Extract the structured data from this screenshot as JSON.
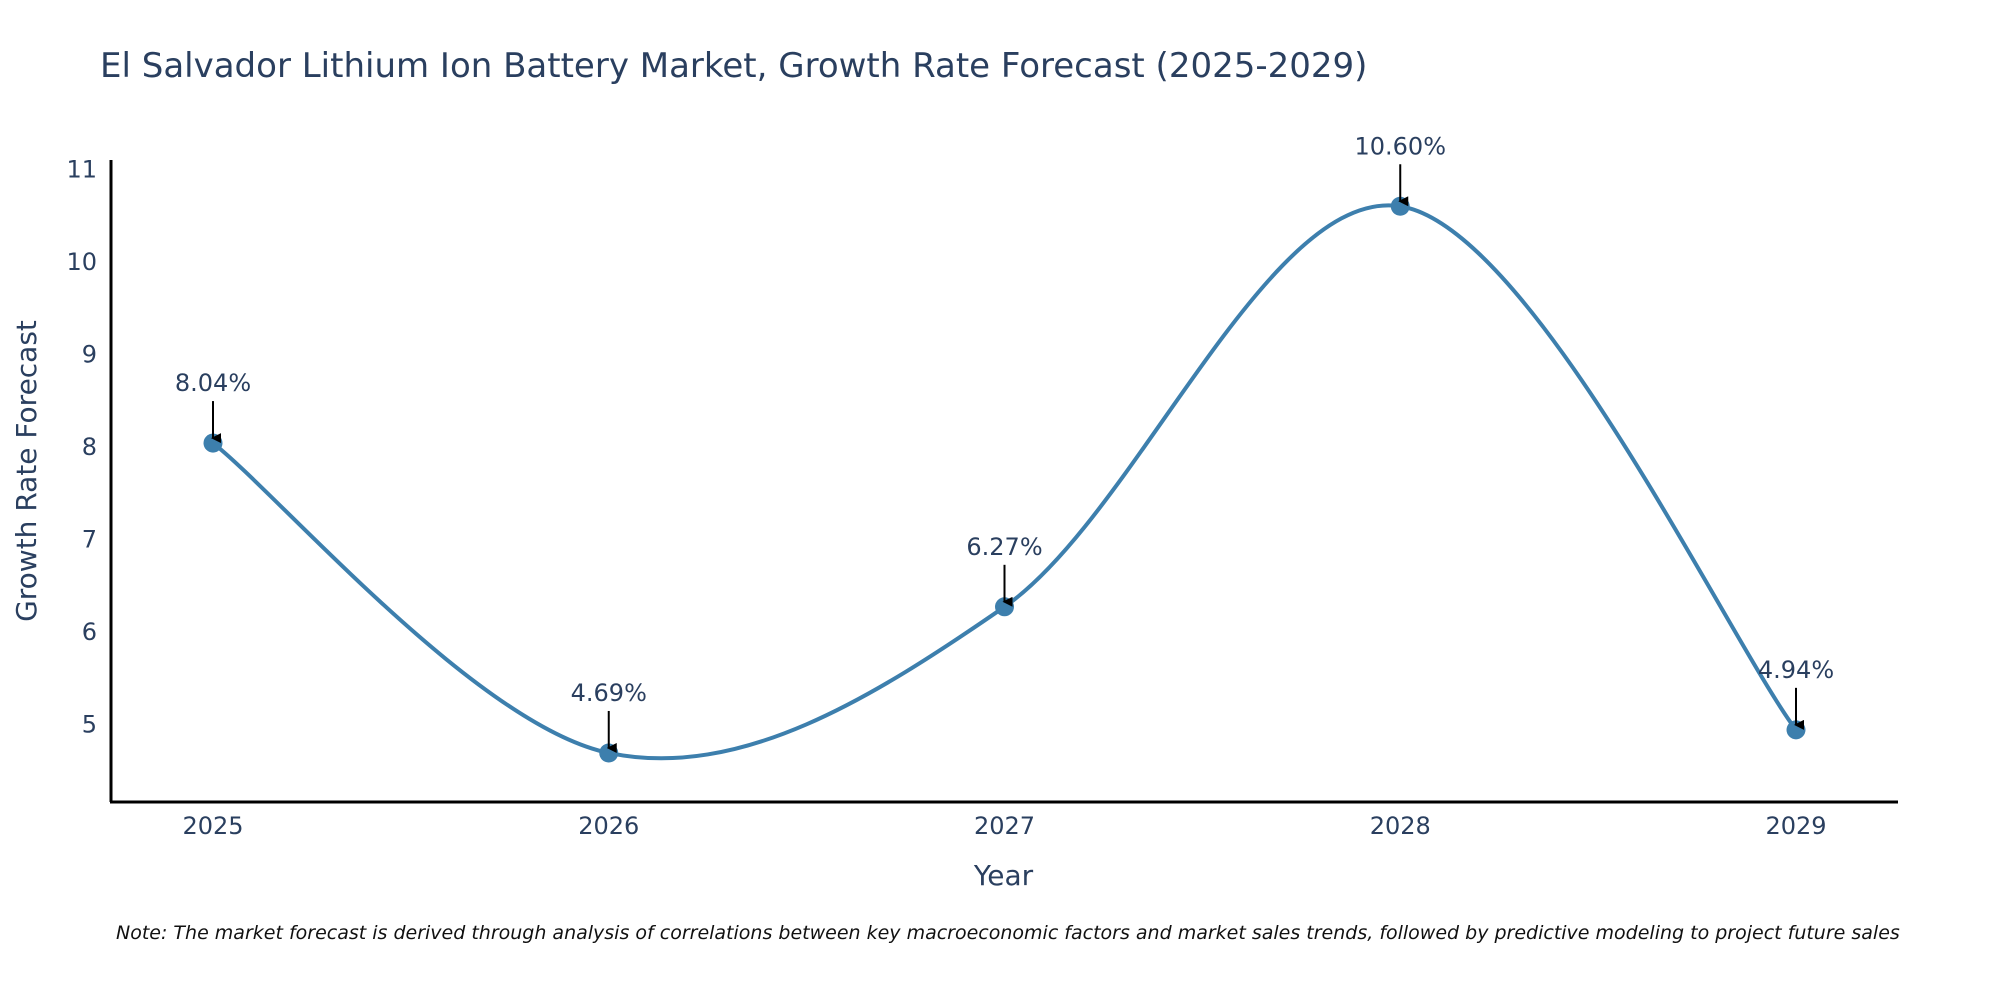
{
  "chart_data": {
    "type": "line",
    "title": "El Salvador Lithium Ion Battery Market, Growth Rate Forecast (2025-2029)",
    "xlabel": "Year",
    "ylabel": "Growth Rate Forecast",
    "categories": [
      "2025",
      "2026",
      "2027",
      "2028",
      "2029"
    ],
    "values": [
      8.04,
      4.69,
      6.27,
      10.6,
      4.94
    ],
    "data_labels": [
      "8.04%",
      "4.69%",
      "6.27%",
      "10.60%",
      "4.94%"
    ],
    "yticks": [
      "5",
      "6",
      "7",
      "8",
      "9",
      "10",
      "11"
    ],
    "ylim": [
      4.16,
      11.1
    ],
    "grid": false,
    "legend": "none",
    "series_color": "#3d7fad",
    "arrow_color": "#000000"
  },
  "note": "Note: The market forecast is derived through analysis of correlations between key macroeconomic factors and market sales trends, followed by predictive modeling to project future sales"
}
